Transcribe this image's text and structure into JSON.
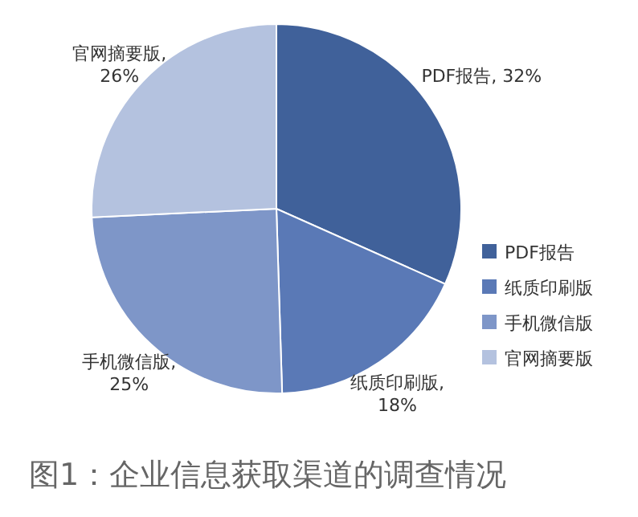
{
  "chart_data": {
    "type": "pie",
    "title": "图1：企业信息获取渠道的调查情况",
    "categories": [
      "PDF报告",
      "纸质印刷版",
      "手机微信版",
      "官网摘要版"
    ],
    "values": [
      32,
      18,
      25,
      26
    ],
    "value_labels": [
      "PDF报告, 32%",
      "纸质印刷版, 18%",
      "手机微信版, 25%",
      "官网摘要版, 26%"
    ],
    "colors": [
      "#40619a",
      "#5a79b6",
      "#7e96c8",
      "#b4c2df"
    ],
    "legend": "right"
  }
}
